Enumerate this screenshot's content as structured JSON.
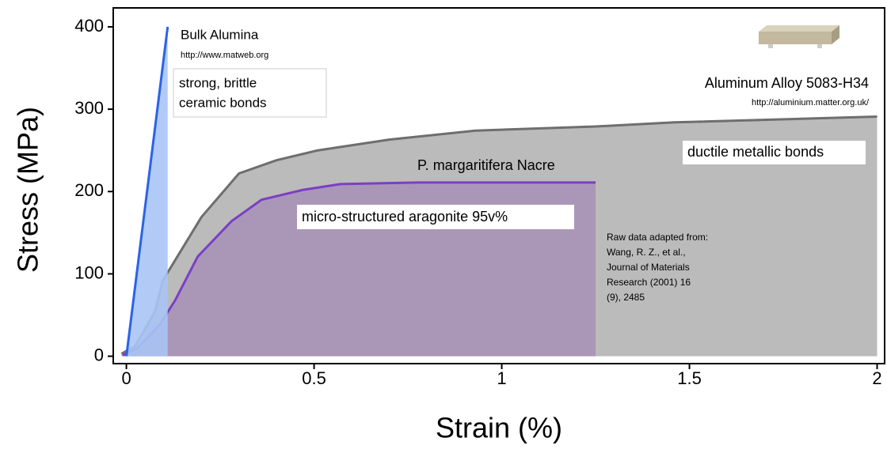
{
  "chart_data": {
    "type": "area-line",
    "xlabel": "Strain (%)",
    "ylabel": "Stress (MPa)",
    "xlim": [
      -0.035,
      2.02
    ],
    "ylim": [
      -9,
      423
    ],
    "xticks": [
      0,
      0.5,
      1,
      1.5,
      2
    ],
    "yticks": [
      0,
      100,
      200,
      300,
      400
    ],
    "grid": false,
    "series": [
      {
        "name": "Aluminum Alloy 5083-H34",
        "color": "#6e6e6e",
        "fill": "#b4b4b4",
        "x": [
          -0.013,
          0.023,
          0.076,
          0.097,
          0.2,
          0.3,
          0.4,
          0.51,
          0.7,
          0.93,
          1.25,
          1.46,
          2.0
        ],
        "values": [
          3,
          12,
          54,
          92,
          169,
          222,
          238,
          250,
          263,
          274,
          279,
          284,
          291
        ]
      },
      {
        "name": "P. margaritifera Nacre",
        "color": "#7b3fc4",
        "fill": "#a893b8",
        "x": [
          -0.01,
          0.03,
          0.09,
          0.13,
          0.19,
          0.28,
          0.36,
          0.47,
          0.57,
          0.78,
          1.25
        ],
        "values": [
          1,
          10,
          39,
          68,
          121,
          164,
          190,
          202,
          209,
          211,
          211
        ]
      },
      {
        "name": "Bulk Alumina",
        "color": "#2a63e6",
        "fill": "#a9c4f5",
        "x": [
          0,
          0.11
        ],
        "values": [
          0,
          400
        ]
      }
    ],
    "annotations": {
      "alumina_source": "http://www.matweb.org",
      "alumina_note": [
        "strong, brittle",
        "ceramic bonds"
      ],
      "alloy_source": "http://aluminium.matter.org.uk/",
      "alloy_note": "ductile metallic bonds",
      "nacre_note": "micro-structured aragonite 95v%",
      "reference": [
        "Raw data adapted from:",
        "Wang, R. Z., et al.,",
        "Journal of Materials",
        "Research (2001) 16",
        "(9), 2485"
      ]
    }
  }
}
